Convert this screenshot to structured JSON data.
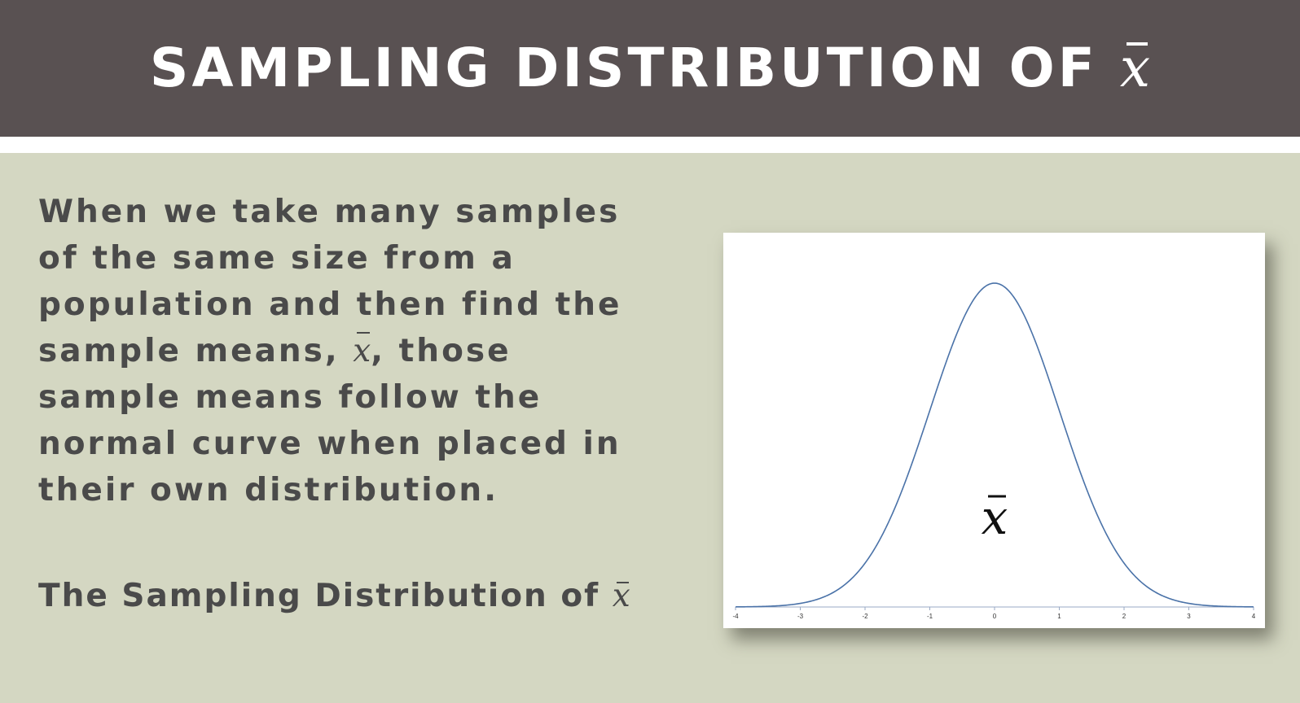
{
  "slide": {
    "title": "SAMPLING DISTRIBUTION OF",
    "title_symbol": "x",
    "body_parts": [
      "When we take many samples of the same size from a population and then find the sample means, ",
      "x",
      ", those sample means follow the normal curve when placed in their own distribution."
    ],
    "subtitle": "The Sampling Distribution of",
    "subtitle_symbol": "x",
    "colors": {
      "title_bar": "#595152",
      "background": "#d4d7c2",
      "text": "#4a4a4a",
      "curve": "#4a72a8"
    }
  },
  "chart_data": {
    "type": "line",
    "function": "standard normal density",
    "x_range": [
      -4,
      4
    ],
    "x_ticks": [
      "-4",
      "-3",
      "-2",
      "-1",
      "0",
      "1",
      "2",
      "3",
      "4"
    ],
    "label": "x",
    "ylabel": "",
    "xlabel": "",
    "grid": false
  }
}
